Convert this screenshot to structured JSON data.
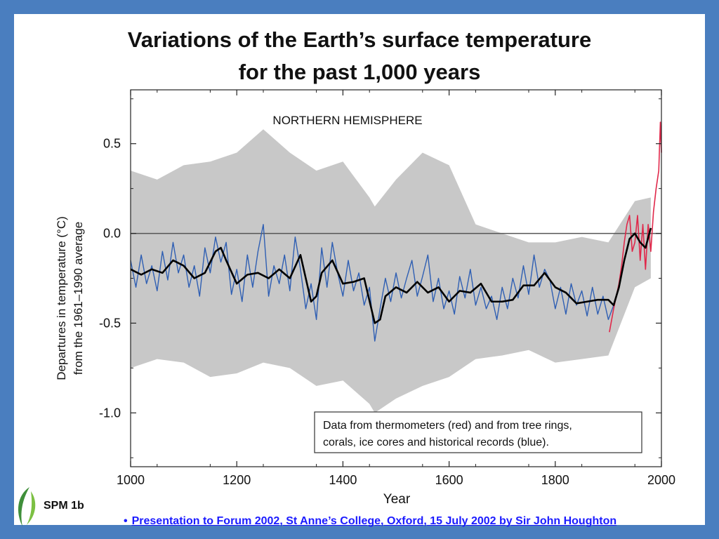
{
  "slide": {
    "title_line1": "Variations of the Earth’s surface temperature",
    "title_line2": "for the past 1,000 years",
    "figure_label": "SPM 1b",
    "footer_link": "Presentation to Forum 2002, St Anne’s College, Oxford, 15 July 2002 by Sir John Houghton",
    "logo_icon": "leaf-logo-icon"
  },
  "colors": {
    "frame": "#4a7ebf",
    "uncertainty": "#c8c8c8",
    "proxy": "#2f5fb3",
    "thermometer": "#e0284a",
    "smooth": "#000000",
    "link": "#1a1aff"
  },
  "chart_data": {
    "type": "line",
    "title": "",
    "panel_label": "NORTHERN HEMISPHERE",
    "xlabel": "Year",
    "ylabel_line1": "Departures in temperature (°C)",
    "ylabel_line2": "from the 1961–1990 average",
    "xlim": [
      1000,
      2000
    ],
    "ylim": [
      -1.3,
      0.8
    ],
    "xticks": [
      1000,
      1200,
      1400,
      1600,
      1800,
      2000
    ],
    "yticks": [
      0.5,
      0.0,
      -0.5,
      -1.0
    ],
    "ytick_labels": [
      "0.5",
      "0.0",
      "-0.5",
      "-1.0"
    ],
    "reference_line_y": 0.0,
    "legend_text_line1": "Data from thermometers (red) and from tree rings,",
    "legend_text_line2": "corals, ice cores and historical records (blue).",
    "legend_position": "bottom-right",
    "series": [
      {
        "role": "smoothed proxy reconstruction (black)",
        "x": [
          1000,
          1020,
          1040,
          1060,
          1080,
          1100,
          1120,
          1140,
          1160,
          1170,
          1180,
          1200,
          1220,
          1240,
          1260,
          1280,
          1300,
          1320,
          1340,
          1350,
          1360,
          1380,
          1400,
          1420,
          1440,
          1460,
          1470,
          1480,
          1500,
          1520,
          1540,
          1560,
          1580,
          1600,
          1620,
          1640,
          1660,
          1680,
          1700,
          1720,
          1740,
          1760,
          1780,
          1800,
          1820,
          1840,
          1860,
          1880,
          1900,
          1910,
          1920,
          1930,
          1940,
          1950,
          1960,
          1970,
          1980
        ],
        "y": [
          -0.2,
          -0.23,
          -0.2,
          -0.22,
          -0.15,
          -0.18,
          -0.25,
          -0.22,
          -0.1,
          -0.08,
          -0.15,
          -0.28,
          -0.23,
          -0.22,
          -0.25,
          -0.2,
          -0.25,
          -0.12,
          -0.38,
          -0.35,
          -0.22,
          -0.15,
          -0.28,
          -0.27,
          -0.25,
          -0.5,
          -0.48,
          -0.35,
          -0.3,
          -0.33,
          -0.27,
          -0.33,
          -0.3,
          -0.38,
          -0.32,
          -0.33,
          -0.28,
          -0.38,
          -0.38,
          -0.37,
          -0.29,
          -0.29,
          -0.22,
          -0.3,
          -0.33,
          -0.39,
          -0.38,
          -0.37,
          -0.37,
          -0.4,
          -0.3,
          -0.15,
          -0.03,
          0.0,
          -0.05,
          -0.08,
          0.03
        ]
      },
      {
        "role": "proxy annual values (blue)",
        "x": [
          1000,
          1010,
          1020,
          1030,
          1040,
          1050,
          1060,
          1070,
          1080,
          1090,
          1100,
          1110,
          1120,
          1130,
          1140,
          1150,
          1160,
          1170,
          1180,
          1190,
          1200,
          1210,
          1220,
          1230,
          1240,
          1250,
          1260,
          1270,
          1280,
          1290,
          1300,
          1310,
          1320,
          1330,
          1340,
          1350,
          1360,
          1370,
          1380,
          1390,
          1400,
          1410,
          1420,
          1430,
          1440,
          1450,
          1460,
          1470,
          1480,
          1490,
          1500,
          1510,
          1520,
          1530,
          1540,
          1550,
          1560,
          1570,
          1580,
          1590,
          1600,
          1610,
          1620,
          1630,
          1640,
          1650,
          1660,
          1670,
          1680,
          1690,
          1700,
          1710,
          1720,
          1730,
          1740,
          1750,
          1760,
          1770,
          1780,
          1790,
          1800,
          1810,
          1820,
          1830,
          1840,
          1850,
          1860,
          1870,
          1880,
          1890,
          1900,
          1910
        ],
        "y": [
          -0.15,
          -0.3,
          -0.12,
          -0.28,
          -0.18,
          -0.32,
          -0.1,
          -0.26,
          -0.05,
          -0.22,
          -0.12,
          -0.3,
          -0.18,
          -0.35,
          -0.08,
          -0.22,
          -0.02,
          -0.16,
          -0.05,
          -0.34,
          -0.2,
          -0.38,
          -0.12,
          -0.3,
          -0.1,
          0.05,
          -0.35,
          -0.18,
          -0.28,
          -0.12,
          -0.32,
          -0.02,
          -0.2,
          -0.42,
          -0.28,
          -0.48,
          -0.08,
          -0.3,
          -0.05,
          -0.22,
          -0.35,
          -0.15,
          -0.32,
          -0.22,
          -0.4,
          -0.3,
          -0.6,
          -0.42,
          -0.25,
          -0.38,
          -0.22,
          -0.36,
          -0.25,
          -0.15,
          -0.35,
          -0.24,
          -0.12,
          -0.38,
          -0.25,
          -0.42,
          -0.32,
          -0.45,
          -0.24,
          -0.36,
          -0.2,
          -0.4,
          -0.3,
          -0.42,
          -0.35,
          -0.48,
          -0.3,
          -0.42,
          -0.25,
          -0.36,
          -0.18,
          -0.34,
          -0.12,
          -0.3,
          -0.2,
          -0.26,
          -0.42,
          -0.3,
          -0.45,
          -0.28,
          -0.4,
          -0.32,
          -0.46,
          -0.3,
          -0.45,
          -0.35,
          -0.48,
          -0.4
        ]
      },
      {
        "role": "thermometer record (red)",
        "x": [
          1902,
          1910,
          1915,
          1920,
          1925,
          1930,
          1935,
          1940,
          1945,
          1950,
          1955,
          1960,
          1965,
          1970,
          1975,
          1980,
          1985,
          1990,
          1995,
          1998,
          2000
        ],
        "y": [
          -0.55,
          -0.42,
          -0.35,
          -0.28,
          -0.18,
          -0.05,
          0.05,
          0.1,
          -0.1,
          -0.05,
          0.1,
          -0.15,
          0.05,
          -0.2,
          0.05,
          -0.1,
          0.12,
          0.25,
          0.35,
          0.62,
          0.45
        ]
      },
      {
        "role": "uncertainty band (grey)",
        "x": [
          1000,
          1050,
          1100,
          1150,
          1200,
          1250,
          1300,
          1350,
          1400,
          1450,
          1460,
          1500,
          1550,
          1600,
          1650,
          1700,
          1750,
          1800,
          1850,
          1900,
          1950,
          1980
        ],
        "upper": [
          0.35,
          0.3,
          0.38,
          0.4,
          0.45,
          0.58,
          0.45,
          0.35,
          0.4,
          0.2,
          0.15,
          0.3,
          0.45,
          0.38,
          0.05,
          0.0,
          -0.05,
          -0.05,
          -0.02,
          -0.05,
          0.18,
          0.2
        ],
        "lower": [
          -0.75,
          -0.7,
          -0.72,
          -0.8,
          -0.78,
          -0.72,
          -0.75,
          -0.85,
          -0.82,
          -0.95,
          -1.0,
          -0.92,
          -0.85,
          -0.8,
          -0.7,
          -0.68,
          -0.65,
          -0.72,
          -0.7,
          -0.68,
          -0.3,
          -0.25
        ]
      }
    ]
  }
}
